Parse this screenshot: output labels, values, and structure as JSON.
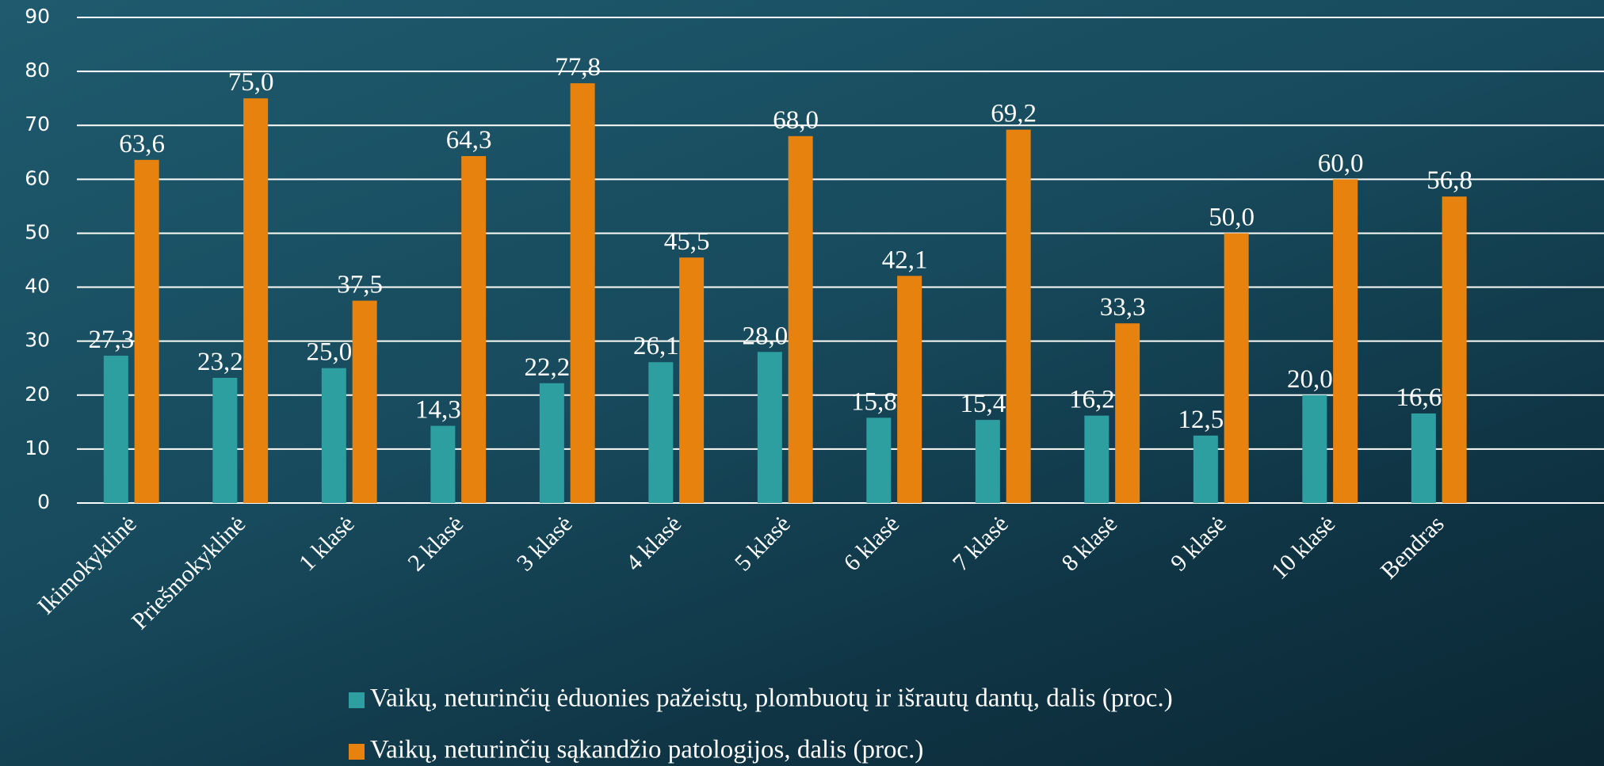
{
  "chart_data": {
    "type": "bar",
    "categories": [
      "Ikimokyklinė",
      "Priešmokyklinė",
      "1 klasė",
      "2 klasė",
      "3 klasė",
      "4 klasė",
      "5 klasė",
      "6 klasė",
      "7 klasė",
      "8 klasė",
      "9 klasė",
      "10 klasė",
      "Bendras"
    ],
    "series": [
      {
        "name": "Vaikų, neturinčių ėduonies pažeistų, plombuotų ir išrautų dantų, dalis (proc.)",
        "color": "#2e9fa1",
        "values": [
          27.3,
          23.2,
          25.0,
          14.3,
          22.2,
          26.1,
          28.0,
          15.8,
          15.4,
          16.2,
          12.5,
          20.0,
          16.6
        ],
        "value_labels": [
          "27,3",
          "23,2",
          "25,0",
          "14,3",
          "22,2",
          "26,1",
          "28,0",
          "15,8",
          "15,4",
          "16,2",
          "12,5",
          "20,0",
          "16,6"
        ]
      },
      {
        "name": "Vaikų, neturinčių sąkandžio patologijos, dalis (proc.)",
        "color": "#e8820f",
        "values": [
          63.6,
          75.0,
          37.5,
          64.3,
          77.8,
          45.5,
          68.0,
          42.1,
          69.2,
          33.3,
          50.0,
          60.0,
          56.8
        ],
        "value_labels": [
          "63,6",
          "75,0",
          "37,5",
          "64,3",
          "77,8",
          "45,5",
          "68,0",
          "42,1",
          "69,2",
          "33,3",
          "50,0",
          "60,0",
          "56,8"
        ]
      }
    ],
    "ylim": [
      0,
      90
    ],
    "yticks": [
      0,
      10,
      20,
      30,
      40,
      50,
      60,
      70,
      80,
      90
    ],
    "grid": true,
    "legend": "bottom"
  }
}
